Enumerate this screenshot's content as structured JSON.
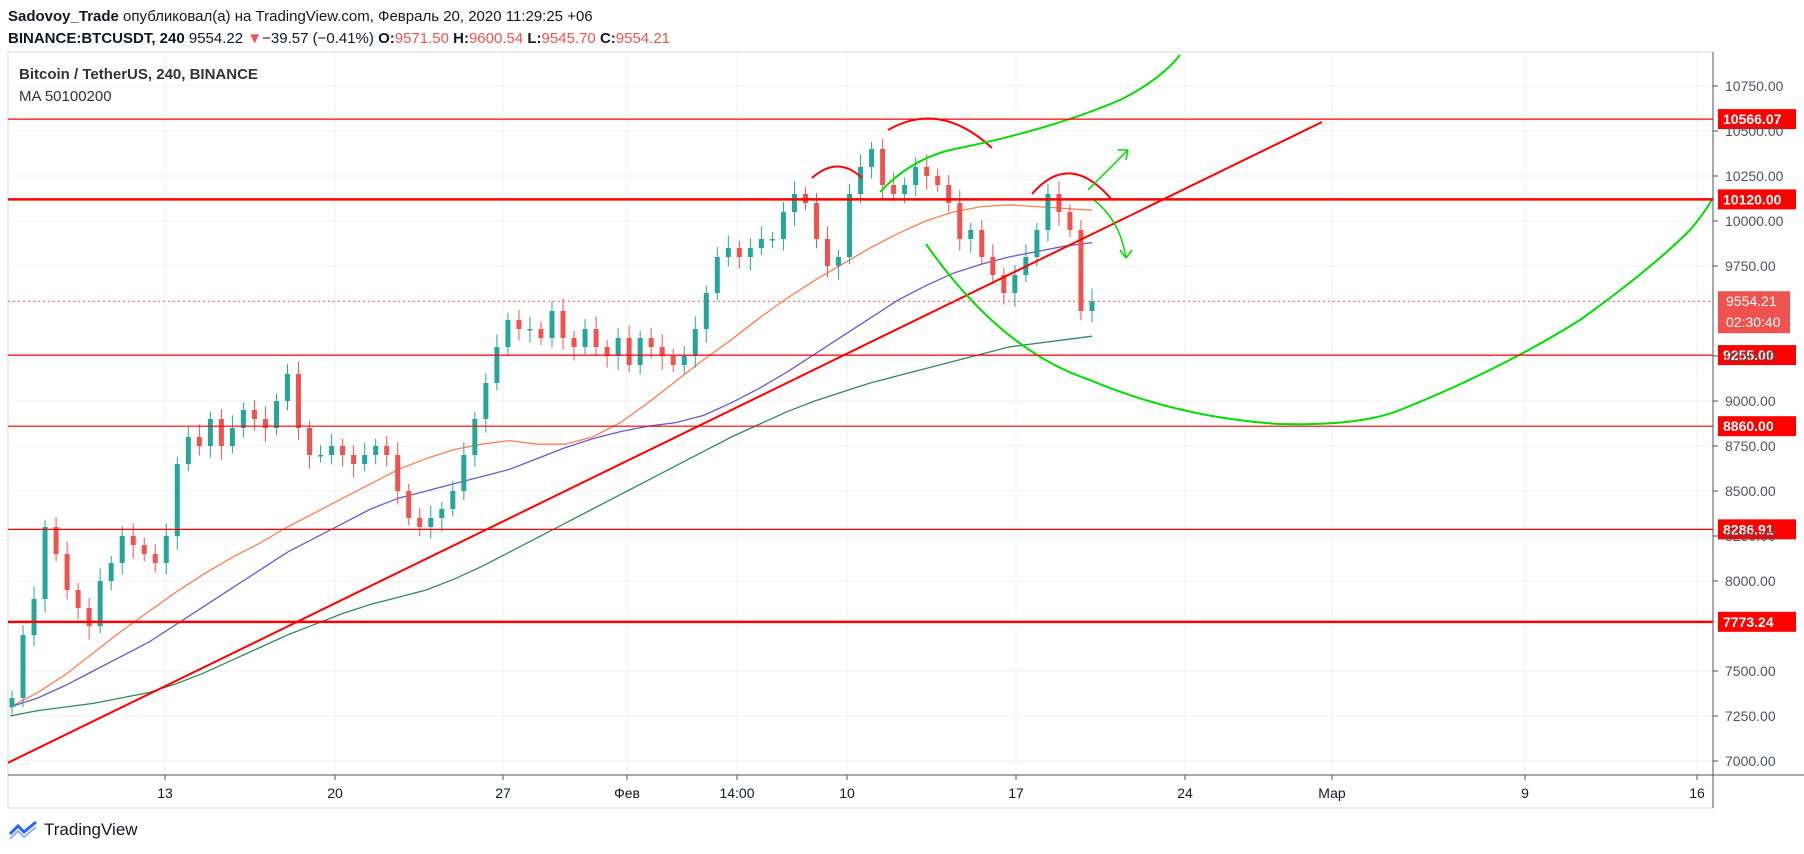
{
  "header": {
    "line1": {
      "author": "Sadovoy_Trade",
      "rest": " опубликовал(а) на TradingView.com, Февраль 20, 2020 11:29:25 +06"
    },
    "line2": {
      "symbol": "BINANCE:BTCUSDT, 240",
      "price": "9554.22",
      "arrow": "▼",
      "change": "−39.57 (−0.41%)",
      "o_label": "O:",
      "o": "9571.50",
      "h_label": "H:",
      "h": "9600.54",
      "l_label": "L:",
      "l": "9545.70",
      "c_label": "C:",
      "c": "9554.21"
    }
  },
  "overlay": {
    "title": "Bitcoin / TetherUS, 240, BINANCE",
    "ma": "MA 50100200"
  },
  "footer": {
    "brand": "TradingView"
  },
  "colors": {
    "up": "#26a69a",
    "down": "#ef5350",
    "level": "#ff0000",
    "trend": "#ff0000",
    "projection": "#00dd00",
    "ma50": "#ff7f50",
    "ma100": "#6a5acd",
    "ma200": "#2e8b57",
    "badge": "#ff0000",
    "grid": "#eef0f3"
  },
  "chart_data": {
    "type": "candlestick",
    "y_axis": {
      "ticks": [
        "7000.00",
        "7250.00",
        "7500.00",
        "8000.00",
        "8250.00",
        "8500.00",
        "8750.00",
        "9000.00",
        "9250.00",
        "9750.00",
        "10000.00",
        "10250.00",
        "10500.00",
        "10750.00"
      ],
      "min": 6950,
      "max": 10900
    },
    "x_axis": {
      "ticks": [
        "13",
        "20",
        "27",
        "Фев",
        "14:00",
        "10",
        "17",
        "24",
        "Мар",
        "9",
        "16"
      ]
    },
    "levels": [
      {
        "label": "10566.07",
        "value": 10566.07,
        "width": 1.2
      },
      {
        "label": "10120.00",
        "value": 10120.0,
        "width": 2.5
      },
      {
        "label": "9255.00",
        "value": 9255.0,
        "width": 1.2
      },
      {
        "label": "8860.00",
        "value": 8860.0,
        "width": 1.2
      },
      {
        "label": "8286.91",
        "value": 8286.91,
        "width": 1.2
      },
      {
        "label": "7773.24",
        "value": 7773.24,
        "width": 2.5
      }
    ],
    "current_price": {
      "label": "9554.21",
      "value": 9554.21,
      "countdown": "02:30:40"
    },
    "candles_close": [
      7350,
      7700,
      7900,
      8300,
      8150,
      7950,
      7850,
      7750,
      8000,
      8100,
      8250,
      8200,
      8150,
      8100,
      8250,
      8650,
      8800,
      8750,
      8900,
      8750,
      8850,
      8950,
      8900,
      8850,
      9000,
      9150,
      8850,
      8700,
      8700,
      8750,
      8700,
      8650,
      8700,
      8750,
      8700,
      8500,
      8350,
      8300,
      8350,
      8400,
      8500,
      8700,
      8900,
      9100,
      9300,
      9450,
      9400,
      9400,
      9350,
      9500,
      9350,
      9300,
      9400,
      9300,
      9250,
      9350,
      9200,
      9350,
      9300,
      9250,
      9200,
      9250,
      9400,
      9600,
      9800,
      9850,
      9800,
      9850,
      9900,
      9900,
      10050,
      10150,
      10100,
      9900,
      9750,
      9800,
      10150,
      10300,
      10400,
      10200,
      10150,
      10200,
      10300,
      10250,
      10200,
      10100,
      9900,
      9950,
      9800,
      9700,
      9600,
      9700,
      9800,
      9950,
      10150,
      10050,
      9950,
      9500,
      9554
    ],
    "ma50": [
      7300,
      7380,
      7480,
      7600,
      7720,
      7830,
      7940,
      8040,
      8130,
      8210,
      8300,
      8380,
      8460,
      8540,
      8620,
      8680,
      8730,
      8760,
      8780,
      8760,
      8760,
      8800,
      8880,
      8990,
      9110,
      9230,
      9340,
      9460,
      9570,
      9670,
      9760,
      9850,
      9930,
      10000,
      10050,
      10080,
      10090,
      10080,
      10070,
      10060
    ],
    "ma100": [
      7300,
      7350,
      7420,
      7500,
      7580,
      7660,
      7760,
      7860,
      7960,
      8060,
      8160,
      8240,
      8320,
      8400,
      8460,
      8500,
      8540,
      8580,
      8620,
      8680,
      8740,
      8790,
      8830,
      8860,
      8880,
      8920,
      8990,
      9070,
      9160,
      9260,
      9360,
      9460,
      9560,
      9640,
      9710,
      9760,
      9800,
      9830,
      9860,
      9880
    ],
    "ma200": [
      7250,
      7280,
      7300,
      7320,
      7350,
      7380,
      7430,
      7490,
      7560,
      7630,
      7700,
      7760,
      7820,
      7870,
      7910,
      7950,
      8010,
      8080,
      8160,
      8240,
      8320,
      8400,
      8480,
      8560,
      8640,
      8720,
      8800,
      8870,
      8940,
      9000,
      9050,
      9100,
      9140,
      9180,
      9220,
      9260,
      9300,
      9320,
      9340,
      9360
    ]
  }
}
